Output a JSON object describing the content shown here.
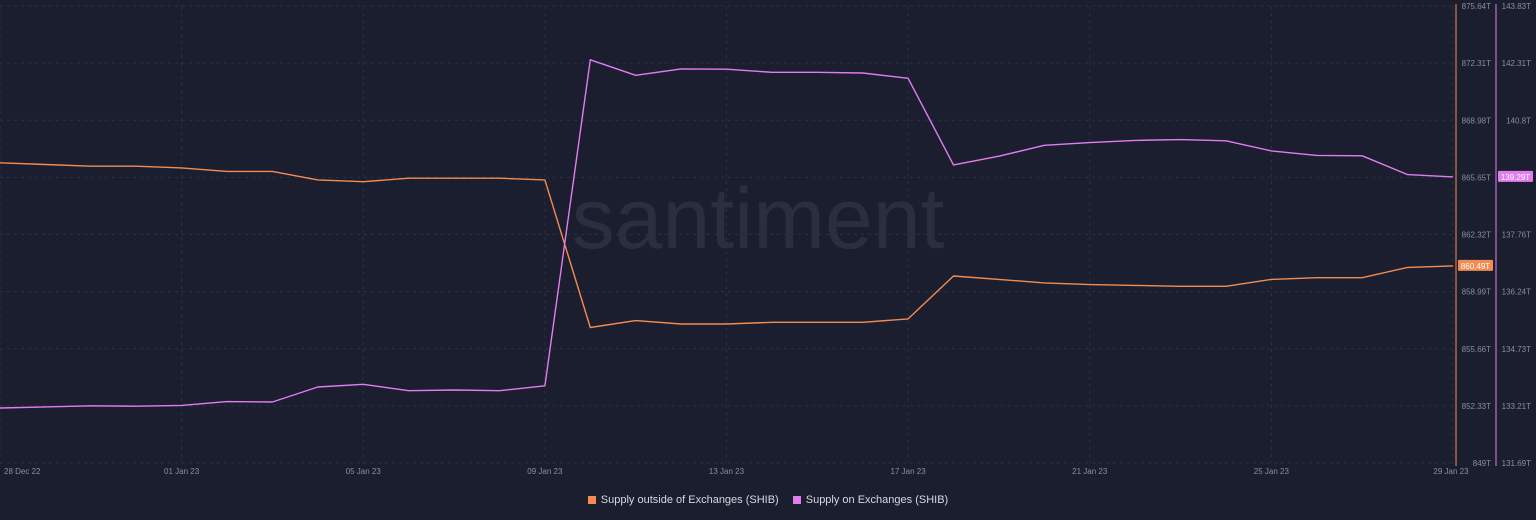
{
  "theme": {
    "background": "#1b1e2e",
    "grid": "#2c3044",
    "tick_text": "#8a8ea3",
    "watermark": "#2a2e40",
    "orange": "#f48c51",
    "pink": "#e27df0"
  },
  "watermark": "santiment",
  "legend": [
    {
      "label": "Supply outside of Exchanges (SHIB)",
      "color": "#f48c51"
    },
    {
      "label": "Supply on Exchanges (SHIB)",
      "color": "#e27df0"
    }
  ],
  "chart_data": {
    "type": "line",
    "x": [
      "28 Dec 22",
      "29 Dec 22",
      "30 Dec 22",
      "31 Dec 22",
      "01 Jan 23",
      "02 Jan 23",
      "03 Jan 23",
      "04 Jan 23",
      "05 Jan 23",
      "06 Jan 23",
      "07 Jan 23",
      "08 Jan 23",
      "09 Jan 23",
      "10 Jan 23",
      "11 Jan 23",
      "12 Jan 23",
      "13 Jan 23",
      "14 Jan 23",
      "15 Jan 23",
      "16 Jan 23",
      "17 Jan 23",
      "18 Jan 23",
      "19 Jan 23",
      "20 Jan 23",
      "21 Jan 23",
      "22 Jan 23",
      "23 Jan 23",
      "24 Jan 23",
      "25 Jan 23",
      "26 Jan 23",
      "27 Jan 23",
      "28 Jan 23",
      "29 Jan 23"
    ],
    "x_tick_labels": [
      "28 Dec 22",
      "01 Jan 23",
      "05 Jan 23",
      "09 Jan 23",
      "13 Jan 23",
      "17 Jan 23",
      "21 Jan 23",
      "25 Jan 23",
      "29 Jan 23"
    ],
    "grid": true,
    "legend_position": "bottom",
    "series": [
      {
        "name": "Supply outside of Exchanges (SHIB)",
        "axis": "right-inner",
        "color": "#f48c51",
        "values": [
          866.5,
          866.4,
          866.3,
          866.3,
          866.2,
          866.0,
          866.0,
          865.5,
          865.4,
          865.6,
          865.6,
          865.6,
          865.5,
          856.9,
          857.3,
          857.1,
          857.1,
          857.2,
          857.2,
          857.2,
          857.4,
          859.9,
          859.7,
          859.5,
          859.4,
          859.35,
          859.3,
          859.3,
          859.7,
          859.8,
          859.8,
          860.4,
          860.49
        ],
        "last_value_label": "860.49T"
      },
      {
        "name": "Supply on Exchanges (SHIB)",
        "axis": "right-outer",
        "color": "#e27df0",
        "values": [
          133.15,
          133.18,
          133.21,
          133.2,
          133.22,
          133.32,
          133.31,
          133.71,
          133.78,
          133.61,
          133.63,
          133.61,
          133.74,
          142.4,
          141.99,
          142.16,
          142.15,
          142.07,
          142.07,
          142.05,
          141.91,
          139.61,
          139.84,
          140.13,
          140.2,
          140.26,
          140.28,
          140.25,
          139.98,
          139.86,
          139.85,
          139.35,
          139.29
        ],
        "last_value_label": "139.29T"
      }
    ],
    "y_axes": [
      {
        "id": "right-inner",
        "ylim": [
          849,
          875.64
        ],
        "tick_labels": [
          "875.64T",
          "872.31T",
          "868.98T",
          "865.65T",
          "862.32T",
          "858.99T",
          "855.66T",
          "852.33T",
          "849T"
        ],
        "color": "#f48c51"
      },
      {
        "id": "right-outer",
        "ylim": [
          131.69,
          143.83
        ],
        "tick_labels": [
          "143.83T",
          "142.31T",
          "140.8T",
          "139.29T",
          "137.76T",
          "136.24T",
          "134.73T",
          "133.21T",
          "131.69T"
        ],
        "color": "#e27df0"
      }
    ]
  }
}
